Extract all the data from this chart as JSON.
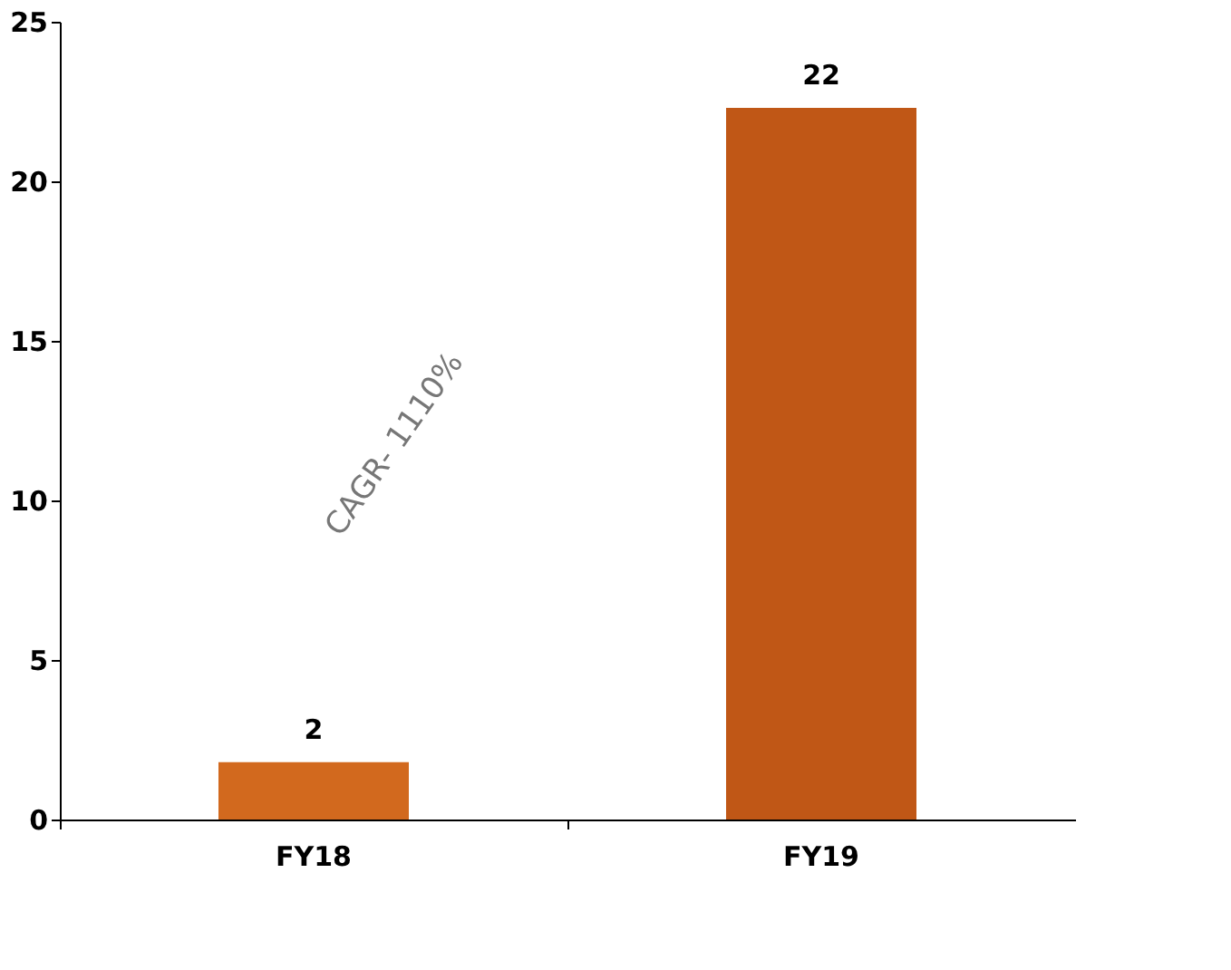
{
  "chart_data": {
    "type": "bar",
    "categories": [
      "FY18",
      "FY19"
    ],
    "values": [
      1.8,
      22.3
    ],
    "colors": [
      "#d2691e",
      "#c05716"
    ],
    "value_labels": [
      "2",
      "22"
    ],
    "ylim": [
      0,
      25
    ],
    "yticks": [
      0,
      5,
      10,
      15,
      20,
      25
    ],
    "grid": false,
    "annotations": [
      "CAGR- 1110%"
    ]
  }
}
